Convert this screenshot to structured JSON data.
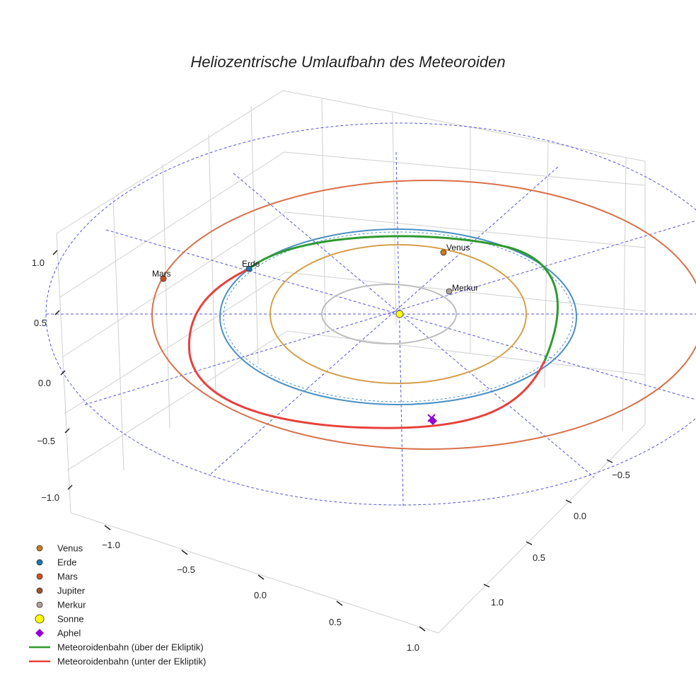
{
  "chart_data": {
    "type": "3d-line",
    "title": "Heliozentrische Umlaufbahn des Meteoroiden",
    "xlabel": "",
    "ylabel": "",
    "zlabel": "",
    "x_ticks": [
      "−1.0",
      "−0.5",
      "0.0",
      "0.5",
      "1.0"
    ],
    "y_ticks": [
      "−0.5",
      "0.0",
      "0.5",
      "1.0"
    ],
    "z_ticks": [
      "1.0",
      "0.5",
      "0.0",
      "−0.5",
      "−1.0"
    ],
    "orbits": [
      {
        "name": "Merkur",
        "radius_au": 0.39,
        "color": "#bdbdbd"
      },
      {
        "name": "Venus",
        "radius_au": 0.72,
        "color": "#d4a04a"
      },
      {
        "name": "Erde",
        "radius_au": 1.0,
        "color": "#4a90c4"
      },
      {
        "name": "Mars",
        "radius_au": 1.52,
        "color": "#d9704a"
      }
    ],
    "bodies": [
      {
        "name": "Venus",
        "label": "Venus",
        "color": "#d07a1a"
      },
      {
        "name": "Erde",
        "label": "Erde",
        "color": "#1f77b4"
      },
      {
        "name": "Mars",
        "label": "Mars",
        "color": "#d2501c"
      },
      {
        "name": "Merkur",
        "label": "Merkur",
        "color": "#b0a09a"
      }
    ],
    "legend": [
      {
        "label": "Venus",
        "marker": "circle",
        "color": "#d07a1a"
      },
      {
        "label": "Erde",
        "marker": "circle",
        "color": "#1f77b4"
      },
      {
        "label": "Mars",
        "marker": "circle",
        "color": "#d2501c"
      },
      {
        "label": "Jupiter",
        "marker": "circle",
        "color": "#a0522d"
      },
      {
        "label": "Merkur",
        "marker": "circle",
        "color": "#b0a09a"
      },
      {
        "label": "Sonne",
        "marker": "circle-large",
        "color": "#ffff00"
      },
      {
        "label": "Aphel",
        "marker": "diamond",
        "color": "#9400d3"
      },
      {
        "label": "Meteoroidenbahn (über der Ekliptik)",
        "marker": "line",
        "color": "#2e9a2e"
      },
      {
        "label": "Meteoroidenbahn (unter der Ekliptik)",
        "marker": "line",
        "color": "#e8403c"
      }
    ],
    "legend_position": "bottom-left",
    "grid": true
  }
}
